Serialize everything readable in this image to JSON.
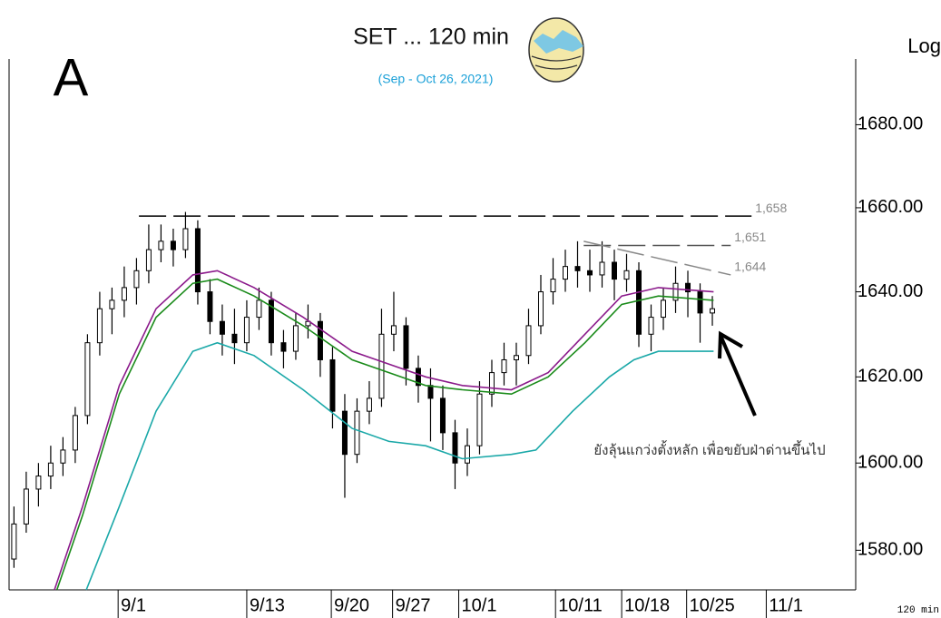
{
  "chart_data": {
    "type": "candlestick",
    "title": "SET ... 120 min",
    "subtitle": "(Sep - Oct 26, 2021)",
    "panel_label": "A",
    "scale_label": "Log",
    "interval_label": "120 min",
    "annotation": "ยังลุ้นแกว่งตั้งหลัก เพื่อขยับฝ่าด่านขึ้นไป",
    "log_scale": true,
    "xlim": [
      0,
      69.1
    ],
    "ylim": [
      1571,
      1696
    ],
    "xticks": [
      {
        "value": 8.9,
        "label": "9/1"
      },
      {
        "value": 19.4,
        "label": "9/13"
      },
      {
        "value": 26.3,
        "label": "9/20"
      },
      {
        "value": 31.3,
        "label": "9/27"
      },
      {
        "value": 36.7,
        "label": "10/1"
      },
      {
        "value": 44.6,
        "label": "10/11"
      },
      {
        "value": 50,
        "label": "10/18"
      },
      {
        "value": 55.3,
        "label": "10/25"
      },
      {
        "value": 61.8,
        "label": "11/1"
      }
    ],
    "yticks": [
      {
        "value": 1580,
        "label": "1580.00"
      },
      {
        "value": 1600,
        "label": "1600.00"
      },
      {
        "value": 1620,
        "label": "1620.00"
      },
      {
        "value": 1640,
        "label": "1640.00"
      },
      {
        "value": 1660,
        "label": "1660.00"
      },
      {
        "value": 1680,
        "label": "1680.00"
      }
    ],
    "candles": {
      "up_color": "#ffffff",
      "down_color": "#000000",
      "edge_color": "#000000",
      "x": [
        0.4,
        1.4,
        2.4,
        3.4,
        4.4,
        5.4,
        6.4,
        7.4,
        8.4,
        9.4,
        10.4,
        11.4,
        12.4,
        13.4,
        14.4,
        15.4,
        16.4,
        17.4,
        18.4,
        19.4,
        20.4,
        21.4,
        22.4,
        23.4,
        24.4,
        25.4,
        26.4,
        27.4,
        28.4,
        29.4,
        30.4,
        31.4,
        32.4,
        33.4,
        34.4,
        35.4,
        36.4,
        37.4,
        38.4,
        39.4,
        40.4,
        41.4,
        42.4,
        43.4,
        44.4,
        45.4,
        46.4,
        47.4,
        48.4,
        49.4,
        50.4,
        51.4,
        52.4,
        53.4,
        54.4,
        55.4,
        56.4,
        57.4
      ],
      "open": [
        1578,
        1586,
        1594,
        1597,
        1600,
        1603,
        1611,
        1628,
        1636,
        1638,
        1641,
        1645,
        1650,
        1652,
        1650,
        1655,
        1640,
        1633,
        1630,
        1628,
        1634,
        1638,
        1628,
        1626,
        1632,
        1633,
        1624,
        1612,
        1602,
        1612,
        1615,
        1630,
        1632,
        1622,
        1618,
        1615,
        1607,
        1600,
        1604,
        1616,
        1621,
        1624,
        1625,
        1632,
        1640,
        1643,
        1646,
        1645,
        1644,
        1647,
        1643,
        1645,
        1630,
        1634,
        1638,
        1642,
        1640,
        1635
      ],
      "high": [
        1590,
        1598,
        1600,
        1604,
        1606,
        1613,
        1630,
        1640,
        1641,
        1646,
        1648,
        1656,
        1656,
        1655,
        1659,
        1657,
        1643,
        1637,
        1636,
        1638,
        1641,
        1640,
        1631,
        1635,
        1637,
        1635,
        1627,
        1616,
        1615,
        1619,
        1636,
        1640,
        1634,
        1625,
        1622,
        1618,
        1610,
        1608,
        1619,
        1624,
        1628,
        1628,
        1636,
        1644,
        1648,
        1650,
        1652,
        1650,
        1652,
        1650,
        1649,
        1647,
        1637,
        1641,
        1646,
        1645,
        1642,
        1639
      ],
      "low": [
        1576,
        1584,
        1590,
        1594,
        1597,
        1600,
        1609,
        1625,
        1630,
        1634,
        1637,
        1642,
        1647,
        1646,
        1648,
        1637,
        1630,
        1625,
        1623,
        1626,
        1631,
        1625,
        1622,
        1624,
        1629,
        1620,
        1608,
        1592,
        1600,
        1609,
        1613,
        1626,
        1618,
        1614,
        1605,
        1603,
        1594,
        1597,
        1602,
        1613,
        1618,
        1618,
        1623,
        1630,
        1637,
        1640,
        1641,
        1640,
        1641,
        1638,
        1640,
        1627,
        1626,
        1631,
        1635,
        1634,
        1628,
        1632
      ],
      "close": [
        1586,
        1594,
        1597,
        1600,
        1603,
        1611,
        1628,
        1636,
        1638,
        1641,
        1645,
        1650,
        1652,
        1650,
        1655,
        1640,
        1633,
        1630,
        1628,
        1634,
        1638,
        1628,
        1626,
        1632,
        1633,
        1624,
        1612,
        1602,
        1612,
        1615,
        1630,
        1632,
        1622,
        1618,
        1615,
        1607,
        1600,
        1604,
        1616,
        1621,
        1624,
        1625,
        1632,
        1640,
        1643,
        1646,
        1645,
        1644,
        1647,
        1643,
        1645,
        1630,
        1634,
        1638,
        1642,
        1640,
        1635,
        1636
      ]
    },
    "series": [
      {
        "color": "#8b1a8b",
        "x": [
          3.7,
          6,
          9,
          12,
          15,
          17,
          20,
          24,
          28,
          31,
          34,
          37,
          41,
          44,
          47,
          50,
          53,
          57.5
        ],
        "values": [
          1571,
          1590,
          1618,
          1636,
          1644,
          1645,
          1641,
          1634,
          1626,
          1623,
          1620,
          1618,
          1617,
          1621,
          1630,
          1639,
          1641,
          1640
        ]
      },
      {
        "color": "#1a8b1a",
        "x": [
          3.9,
          6,
          9,
          12,
          15,
          17,
          20,
          24,
          28,
          31,
          34,
          37,
          41,
          44,
          47,
          50,
          53,
          57.5
        ],
        "values": [
          1571,
          1588,
          1616,
          1634,
          1642,
          1643,
          1639,
          1632,
          1624,
          1621,
          1618,
          1617,
          1616,
          1620,
          1628,
          1637,
          1639,
          1638
        ]
      },
      {
        "color": "#1aa8a8",
        "x": [
          6.3,
          9,
          12,
          15,
          17,
          20,
          24,
          28,
          31,
          34,
          37,
          41,
          43,
          46,
          49,
          51,
          53,
          57.5
        ],
        "values": [
          1571,
          1590,
          1612,
          1626,
          1628,
          1625,
          1617,
          1608,
          1605,
          1604,
          1601,
          1602,
          1603,
          1612,
          1620,
          1624,
          1626,
          1626
        ]
      }
    ],
    "levels": [
      {
        "value": 1658,
        "label": "1,658",
        "x": [
          10.6,
          60.6
        ],
        "color": "#000000"
      },
      {
        "value": 1651,
        "label": "1,651",
        "x": [
          46.9,
          58.9
        ],
        "color": "#555555"
      },
      {
        "value": 1644,
        "from": 1652,
        "label": "1,644",
        "x": [
          46.9,
          58.9
        ],
        "color": "#888888"
      }
    ]
  }
}
